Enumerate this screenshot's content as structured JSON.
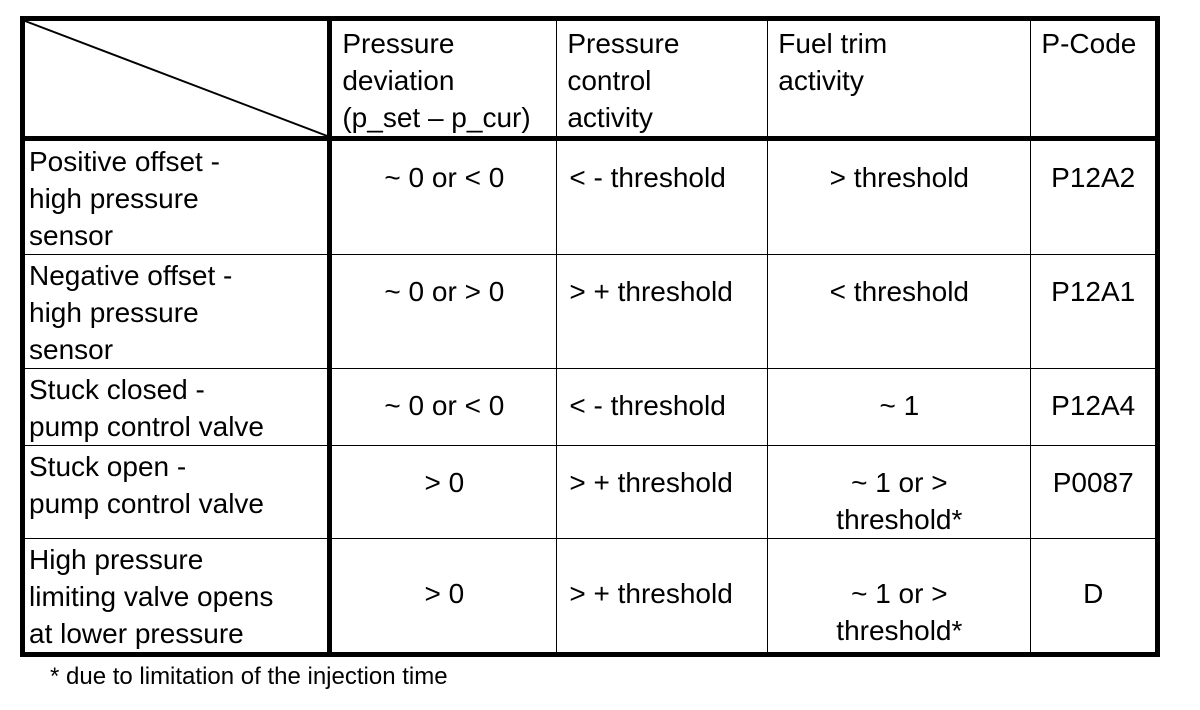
{
  "table": {
    "headers": [
      "Pressure\ndeviation\n(p_set – p_cur)",
      "Pressure\ncontrol\nactivity",
      "Fuel trim\nactivity",
      "P-Code"
    ],
    "rows": [
      {
        "label": "Positive offset     -\nhigh pressure\nsensor",
        "cells": [
          "~ 0 or < 0",
          "< - threshold",
          "> threshold",
          "P12A2"
        ]
      },
      {
        "label": "Negative offset    -\nhigh pressure\nsensor",
        "cells": [
          "~ 0 or > 0",
          "> + threshold",
          "< threshold",
          "P12A1"
        ]
      },
      {
        "label": "Stuck closed      -\npump control valve",
        "cells": [
          "~ 0 or < 0",
          "< - threshold",
          "~ 1",
          "P12A4"
        ]
      },
      {
        "label": "Stuck open       -\npump control valve",
        "cells": [
          "> 0",
          "> + threshold",
          "~ 1 or >\nthreshold*",
          "P0087"
        ]
      },
      {
        "label": "High pressure\nlimiting valve opens\nat lower pressure",
        "cells": [
          "> 0",
          "> + threshold",
          "~ 1 or >\nthreshold*",
          "D"
        ]
      }
    ]
  },
  "footnote": "* due to limitation of the injection time"
}
